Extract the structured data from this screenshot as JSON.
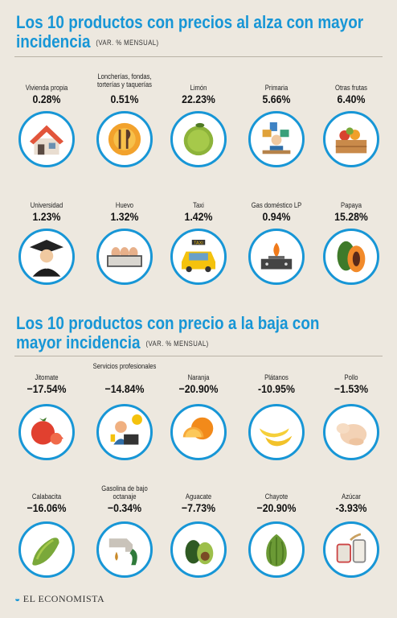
{
  "section_up": {
    "title_line1": "Los 10 productos con precios al alza con mayor",
    "title_line2": "incidencia",
    "subtitle": "(VAR. % MENSUAL)",
    "items": [
      {
        "label": "Vivienda propia",
        "value": "0.28%",
        "icon": "house-icon"
      },
      {
        "label": "Loncherías, fondas, torterías y taquerías",
        "value": "0.51%",
        "icon": "plate-cutlery-icon"
      },
      {
        "label": "Limón",
        "value": "22.23%",
        "icon": "lime-icon"
      },
      {
        "label": "Primaria",
        "value": "5.66%",
        "icon": "student-desk-icon"
      },
      {
        "label": "Otras frutas",
        "value": "6.40%",
        "icon": "fruit-crate-icon"
      },
      {
        "label": "Universidad",
        "value": "1.23%",
        "icon": "graduate-icon"
      },
      {
        "label": "Huevo",
        "value": "1.32%",
        "icon": "egg-carton-icon"
      },
      {
        "label": "Taxi",
        "value": "1.42%",
        "icon": "taxi-icon"
      },
      {
        "label": "Gas doméstico LP",
        "value": "0.94%",
        "icon": "gas-stove-icon"
      },
      {
        "label": "Papaya",
        "value": "15.28%",
        "icon": "papaya-icon"
      }
    ]
  },
  "section_down": {
    "title_line1": "Los 10 productos con precio a la baja con",
    "title_line2": "mayor incidencia",
    "subtitle": "(VAR. % MENSUAL)",
    "items": [
      {
        "label": "Jitomate",
        "value": "−17.54%",
        "icon": "tomato-icon"
      },
      {
        "label": "Servicios profesionales",
        "value": "−14.84%",
        "icon": "professional-laptop-icon"
      },
      {
        "label": "Naranja",
        "value": "−20.90%",
        "icon": "orange-icon"
      },
      {
        "label": "Plátanos",
        "value": "-10.95%",
        "icon": "banana-icon"
      },
      {
        "label": "Pollo",
        "value": "−1.53%",
        "icon": "chicken-icon"
      },
      {
        "label": "Calabacita",
        "value": "−16.06%",
        "icon": "zucchini-icon"
      },
      {
        "label": "Gasolina de bajo octanaje",
        "value": "−0.34%",
        "icon": "fuel-nozzle-icon"
      },
      {
        "label": "Aguacate",
        "value": "−7.73%",
        "icon": "avocado-icon"
      },
      {
        "label": "Chayote",
        "value": "−20.90%",
        "icon": "chayote-icon"
      },
      {
        "label": "Azúcar",
        "value": "-3.93%",
        "icon": "sugar-jar-icon"
      }
    ]
  },
  "footer": {
    "brand": "EL ECONOMISTA",
    "mark": "◒"
  },
  "colors": {
    "accent": "#1796d6",
    "background": "#ede8df"
  }
}
